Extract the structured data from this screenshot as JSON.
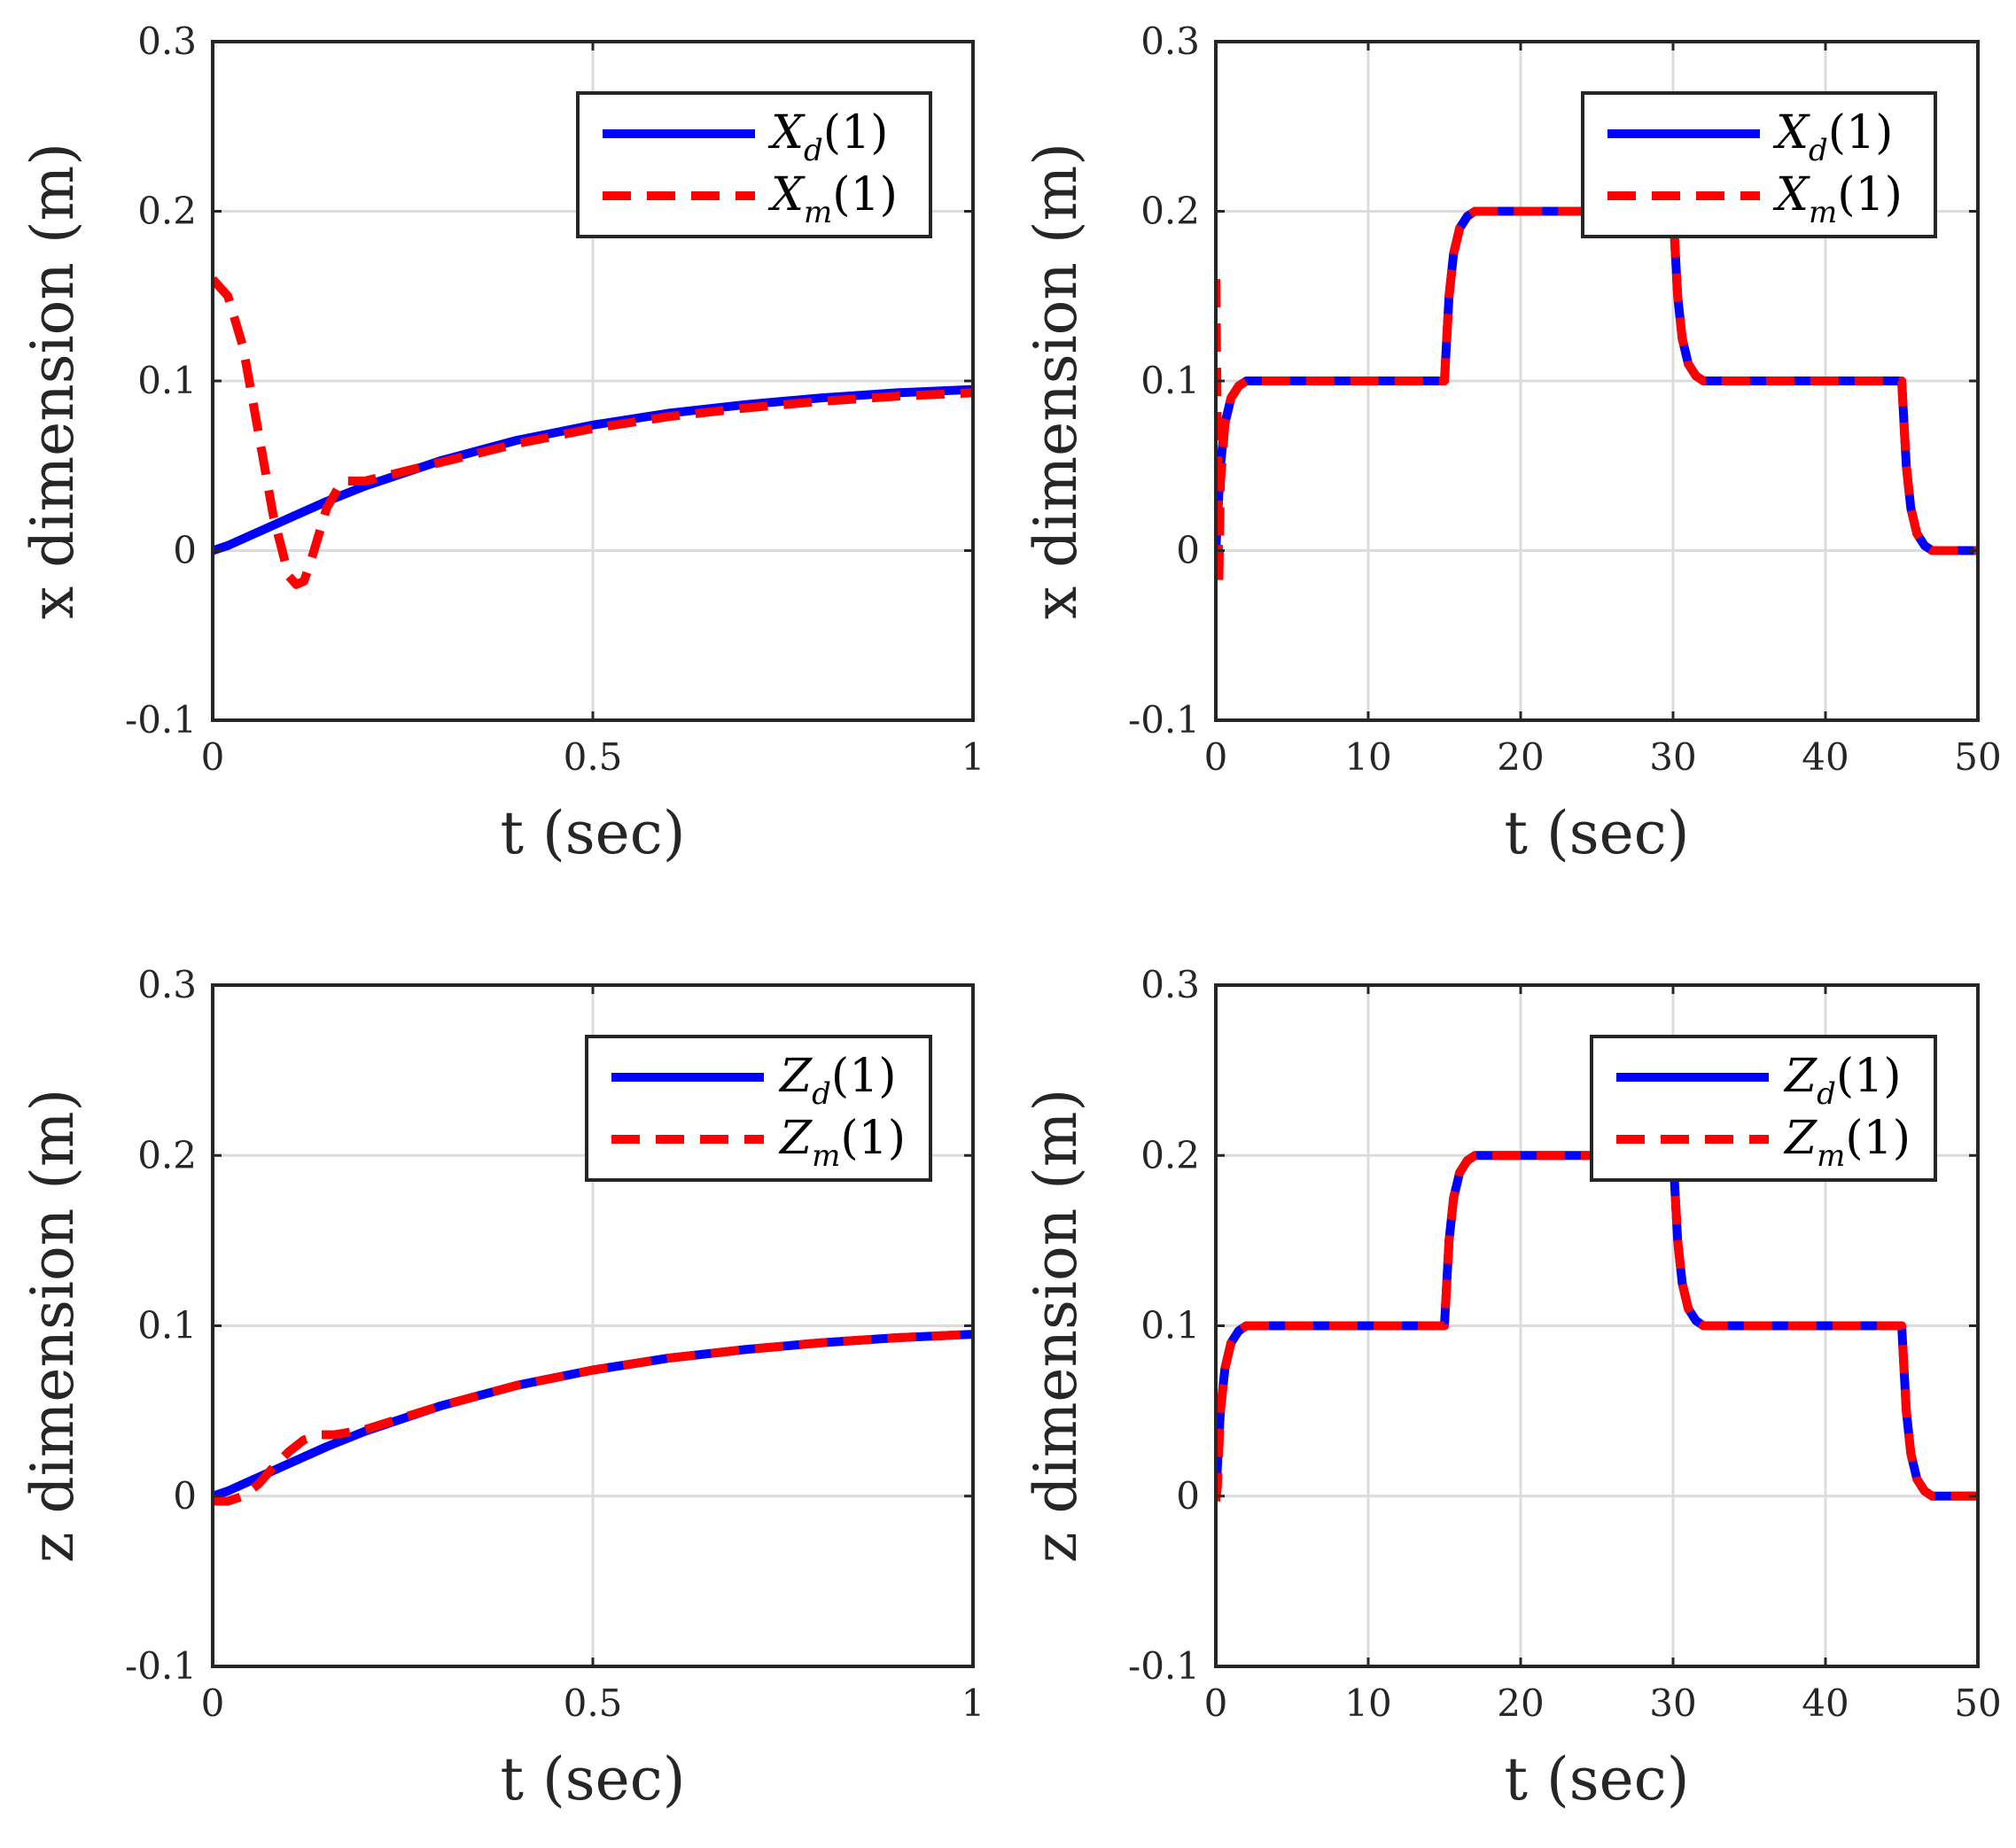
{
  "chart_data": [
    {
      "type": "line",
      "xlabel": "t (sec)",
      "ylabel": "x dimension (m)",
      "xlim": [
        0,
        1
      ],
      "ylim": [
        -0.1,
        0.3
      ],
      "xticks": [
        "0",
        "0.5",
        "1"
      ],
      "yticks": [
        "-0.1",
        "0",
        "0.1",
        "0.2",
        "0.3"
      ],
      "grid": true,
      "legend_position": "top-right",
      "series": [
        {
          "name": "Xd(1)",
          "style": "solid",
          "color": "#0000ff",
          "x": [
            0,
            0.02,
            0.05,
            0.08,
            0.1,
            0.15,
            0.2,
            0.3,
            0.4,
            0.5,
            0.6,
            0.7,
            0.8,
            0.9,
            1.0
          ],
          "y": [
            0,
            0.003,
            0.009,
            0.015,
            0.019,
            0.029,
            0.038,
            0.053,
            0.065,
            0.074,
            0.081,
            0.086,
            0.09,
            0.093,
            0.095
          ]
        },
        {
          "name": "Xm(1)",
          "style": "dashed",
          "color": "#ff0000",
          "x": [
            0,
            0.02,
            0.04,
            0.06,
            0.08,
            0.1,
            0.11,
            0.12,
            0.13,
            0.15,
            0.17,
            0.2,
            0.3,
            0.4,
            0.5,
            0.6,
            0.7,
            0.8,
            0.9,
            1.0
          ],
          "y": [
            0.16,
            0.15,
            0.12,
            0.07,
            0.02,
            -0.015,
            -0.02,
            -0.018,
            -0.005,
            0.025,
            0.041,
            0.041,
            0.052,
            0.063,
            0.072,
            0.079,
            0.084,
            0.088,
            0.091,
            0.093
          ]
        }
      ]
    },
    {
      "type": "line",
      "xlabel": "t (sec)",
      "ylabel": "x dimension (m)",
      "xlim": [
        0,
        50
      ],
      "ylim": [
        -0.1,
        0.3
      ],
      "xticks": [
        "0",
        "10",
        "20",
        "30",
        "40",
        "50"
      ],
      "yticks": [
        "-0.1",
        "0",
        "0.1",
        "0.2",
        "0.3"
      ],
      "grid": true,
      "legend_position": "top-right",
      "series": [
        {
          "name": "Xd(1)",
          "style": "solid",
          "color": "#0000ff",
          "x": [
            0,
            0.3,
            0.6,
            1,
            1.5,
            2,
            15,
            15.3,
            15.6,
            16,
            16.5,
            17,
            30,
            30.3,
            30.6,
            31,
            31.5,
            32,
            45,
            45.3,
            45.6,
            46,
            46.5,
            47,
            50
          ],
          "y": [
            0,
            0.05,
            0.075,
            0.09,
            0.097,
            0.1,
            0.1,
            0.15,
            0.175,
            0.19,
            0.197,
            0.2,
            0.2,
            0.15,
            0.125,
            0.11,
            0.103,
            0.1,
            0.1,
            0.05,
            0.025,
            0.01,
            0.003,
            0,
            0
          ]
        },
        {
          "name": "Xm(1)",
          "style": "dashed",
          "color": "#ff0000",
          "x": [
            0,
            0.1,
            0.2,
            0.3,
            0.6,
            1,
            1.5,
            2,
            15,
            15.3,
            15.6,
            16,
            16.5,
            17,
            30,
            30.3,
            30.6,
            31,
            31.5,
            32,
            45,
            45.3,
            45.6,
            46,
            46.5,
            47,
            50
          ],
          "y": [
            0.16,
            0.07,
            -0.02,
            0.04,
            0.075,
            0.09,
            0.097,
            0.1,
            0.1,
            0.15,
            0.175,
            0.19,
            0.197,
            0.2,
            0.2,
            0.15,
            0.125,
            0.11,
            0.103,
            0.1,
            0.1,
            0.05,
            0.025,
            0.01,
            0.003,
            0,
            0
          ]
        }
      ]
    },
    {
      "type": "line",
      "xlabel": "t (sec)",
      "ylabel": "z dimension (m)",
      "xlim": [
        0,
        1
      ],
      "ylim": [
        -0.1,
        0.3
      ],
      "xticks": [
        "0",
        "0.5",
        "1"
      ],
      "yticks": [
        "-0.1",
        "0",
        "0.1",
        "0.2",
        "0.3"
      ],
      "grid": true,
      "legend_position": "top-right",
      "series": [
        {
          "name": "Zd(1)",
          "style": "solid",
          "color": "#0000ff",
          "x": [
            0,
            0.02,
            0.05,
            0.08,
            0.1,
            0.15,
            0.2,
            0.3,
            0.4,
            0.5,
            0.6,
            0.7,
            0.8,
            0.9,
            1.0
          ],
          "y": [
            0,
            0.003,
            0.009,
            0.015,
            0.019,
            0.029,
            0.038,
            0.053,
            0.065,
            0.074,
            0.081,
            0.086,
            0.09,
            0.093,
            0.095
          ]
        },
        {
          "name": "Zm(1)",
          "style": "dashed",
          "color": "#ff0000",
          "x": [
            0,
            0.02,
            0.04,
            0.06,
            0.08,
            0.1,
            0.12,
            0.14,
            0.16,
            0.2,
            0.3,
            0.4,
            0.5,
            0.6,
            0.7,
            0.8,
            0.9,
            1.0
          ],
          "y": [
            -0.003,
            -0.003,
            0.0,
            0.007,
            0.017,
            0.026,
            0.033,
            0.036,
            0.036,
            0.039,
            0.053,
            0.065,
            0.074,
            0.081,
            0.086,
            0.09,
            0.093,
            0.095
          ]
        }
      ]
    },
    {
      "type": "line",
      "xlabel": "t (sec)",
      "ylabel": "z dimension (m)",
      "xlim": [
        0,
        50
      ],
      "ylim": [
        -0.1,
        0.3
      ],
      "xticks": [
        "0",
        "10",
        "20",
        "30",
        "40",
        "50"
      ],
      "yticks": [
        "-0.1",
        "0",
        "0.1",
        "0.2",
        "0.3"
      ],
      "grid": true,
      "legend_position": "top-right",
      "series": [
        {
          "name": "Zd(1)",
          "style": "solid",
          "color": "#0000ff",
          "x": [
            0,
            0.3,
            0.6,
            1,
            1.5,
            2,
            15,
            15.3,
            15.6,
            16,
            16.5,
            17,
            30,
            30.3,
            30.6,
            31,
            31.5,
            32,
            45,
            45.3,
            45.6,
            46,
            46.5,
            47,
            50
          ],
          "y": [
            0,
            0.05,
            0.075,
            0.09,
            0.097,
            0.1,
            0.1,
            0.15,
            0.175,
            0.19,
            0.197,
            0.2,
            0.2,
            0.15,
            0.125,
            0.11,
            0.103,
            0.1,
            0.1,
            0.05,
            0.025,
            0.01,
            0.003,
            0,
            0
          ]
        },
        {
          "name": "Zm(1)",
          "style": "dashed",
          "color": "#ff0000",
          "x": [
            0,
            0.1,
            0.3,
            0.6,
            1,
            1.5,
            2,
            15,
            15.3,
            15.6,
            16,
            16.5,
            17,
            30,
            30.3,
            30.6,
            31,
            31.5,
            32,
            45,
            45.3,
            45.6,
            46,
            46.5,
            47,
            50
          ],
          "y": [
            -0.003,
            0.005,
            0.05,
            0.075,
            0.09,
            0.097,
            0.1,
            0.1,
            0.15,
            0.175,
            0.19,
            0.197,
            0.2,
            0.2,
            0.15,
            0.125,
            0.11,
            0.103,
            0.1,
            0.1,
            0.05,
            0.025,
            0.01,
            0.003,
            0,
            0
          ]
        }
      ]
    }
  ]
}
